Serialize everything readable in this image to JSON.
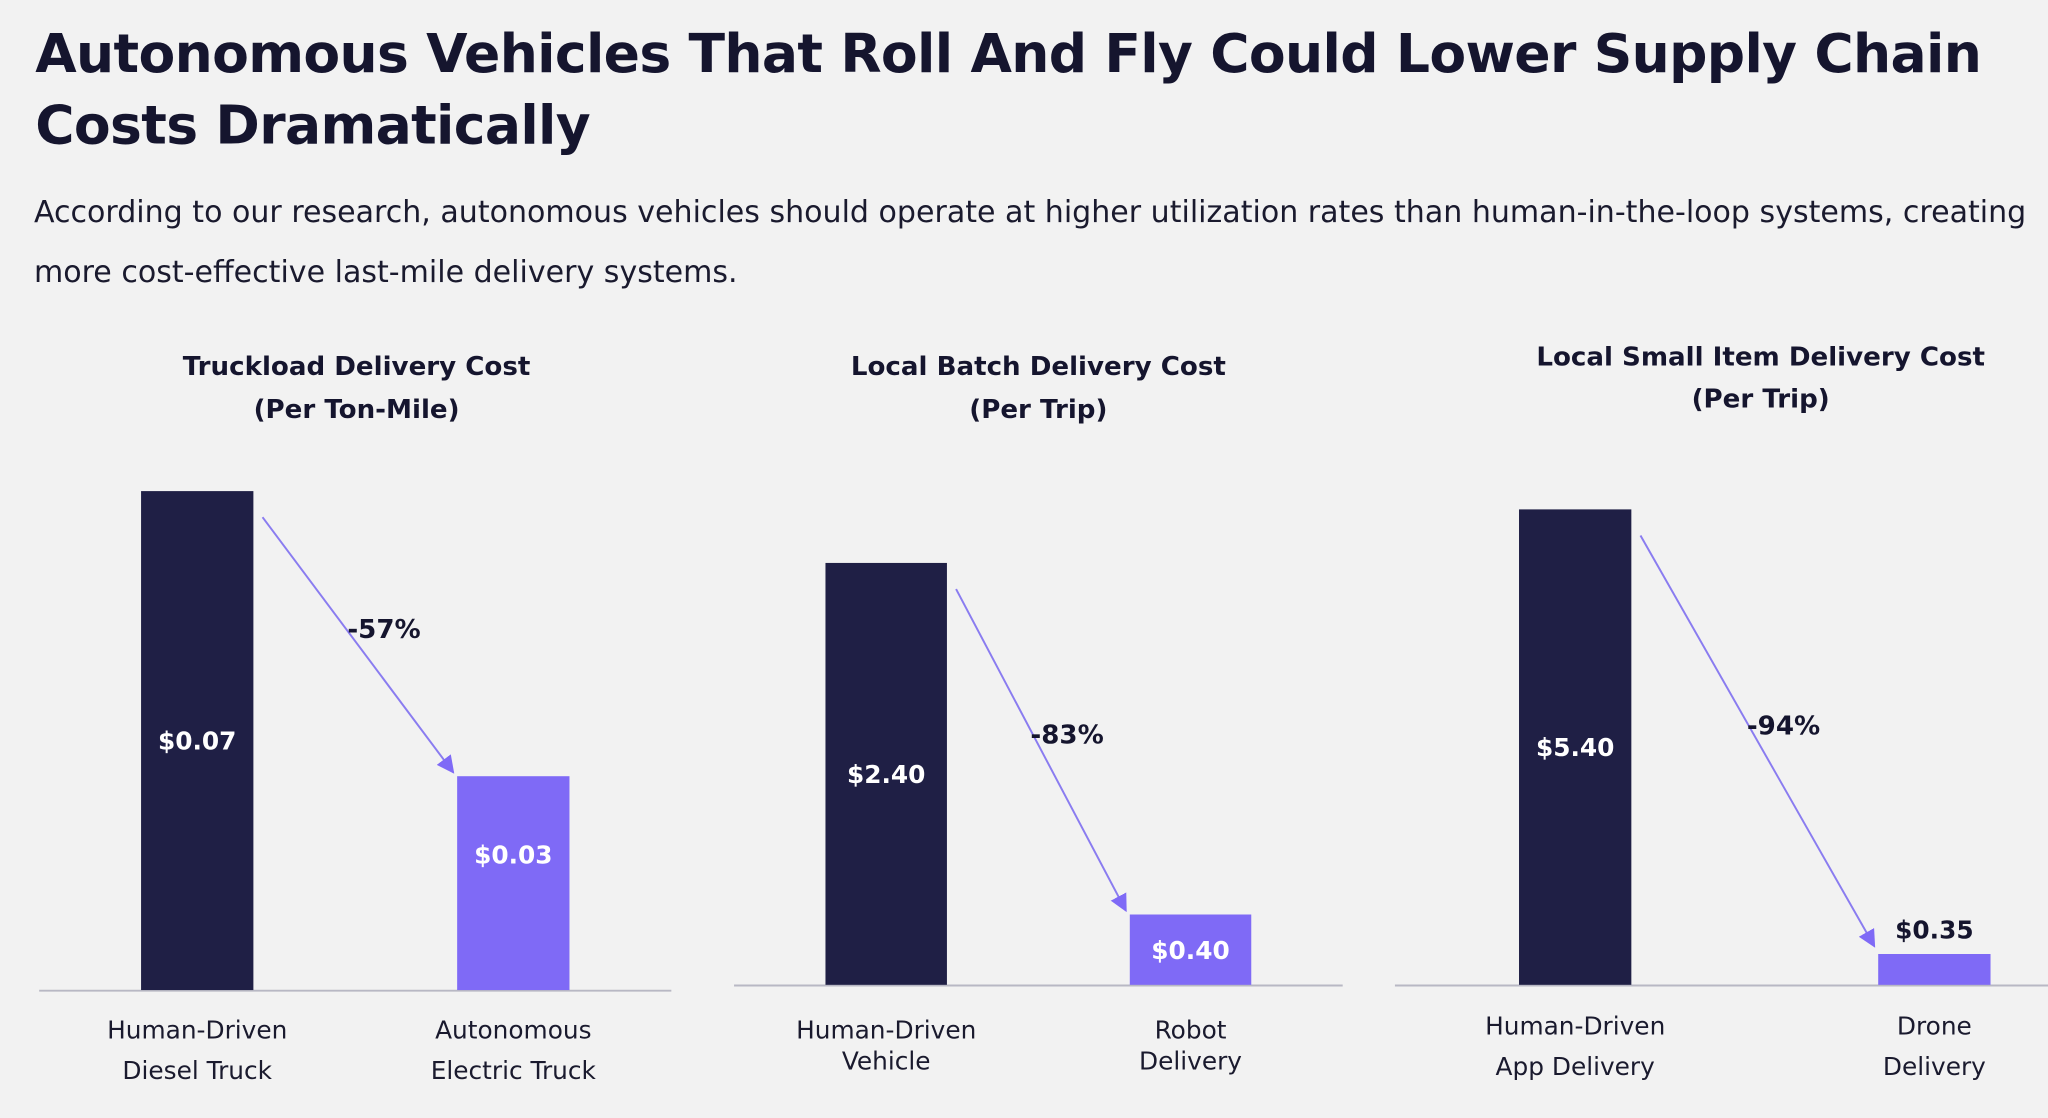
{
  "title": "Autonomous Vehicles That Roll And Fly Could Lower Supply Chain Costs Dramatically",
  "subtitle": "According to our research, autonomous vehicles should operate at higher utilization rates than human-in-the-loop systems, creating more cost-effective last-mile delivery systems.",
  "colors": {
    "human": "#1f1f45",
    "autonomous": "#7f6af6",
    "arrow": "#8a7cf0",
    "axis": "#b8b8c4"
  },
  "chart_data": [
    {
      "type": "bar",
      "title": [
        "Truckload Delivery Cost",
        "(Per Ton-Mile)"
      ],
      "categories": [
        [
          "Human-Driven",
          "Diesel Truck"
        ],
        [
          "Autonomous",
          "Electric Truck"
        ]
      ],
      "values": [
        0.07,
        0.03
      ],
      "value_labels": [
        "$0.07",
        "$0.03"
      ],
      "change_label": "-57%"
    },
    {
      "type": "bar",
      "title": [
        "Local Batch Delivery Cost",
        "(Per Trip)"
      ],
      "categories": [
        [
          "Human-Driven",
          "Vehicle"
        ],
        [
          "Robot",
          "Delivery"
        ]
      ],
      "values": [
        2.4,
        0.4
      ],
      "value_labels": [
        "$2.40",
        "$0.40"
      ],
      "change_label": "-83%"
    },
    {
      "type": "bar",
      "title": [
        "Local Small Item Delivery Cost",
        "(Per Trip)"
      ],
      "categories": [
        [
          "Human-Driven",
          "App Delivery"
        ],
        [
          "Drone",
          "Delivery"
        ]
      ],
      "values": [
        5.4,
        0.35
      ],
      "value_labels": [
        "$5.40",
        "$0.35"
      ],
      "change_label": "-94%"
    }
  ]
}
